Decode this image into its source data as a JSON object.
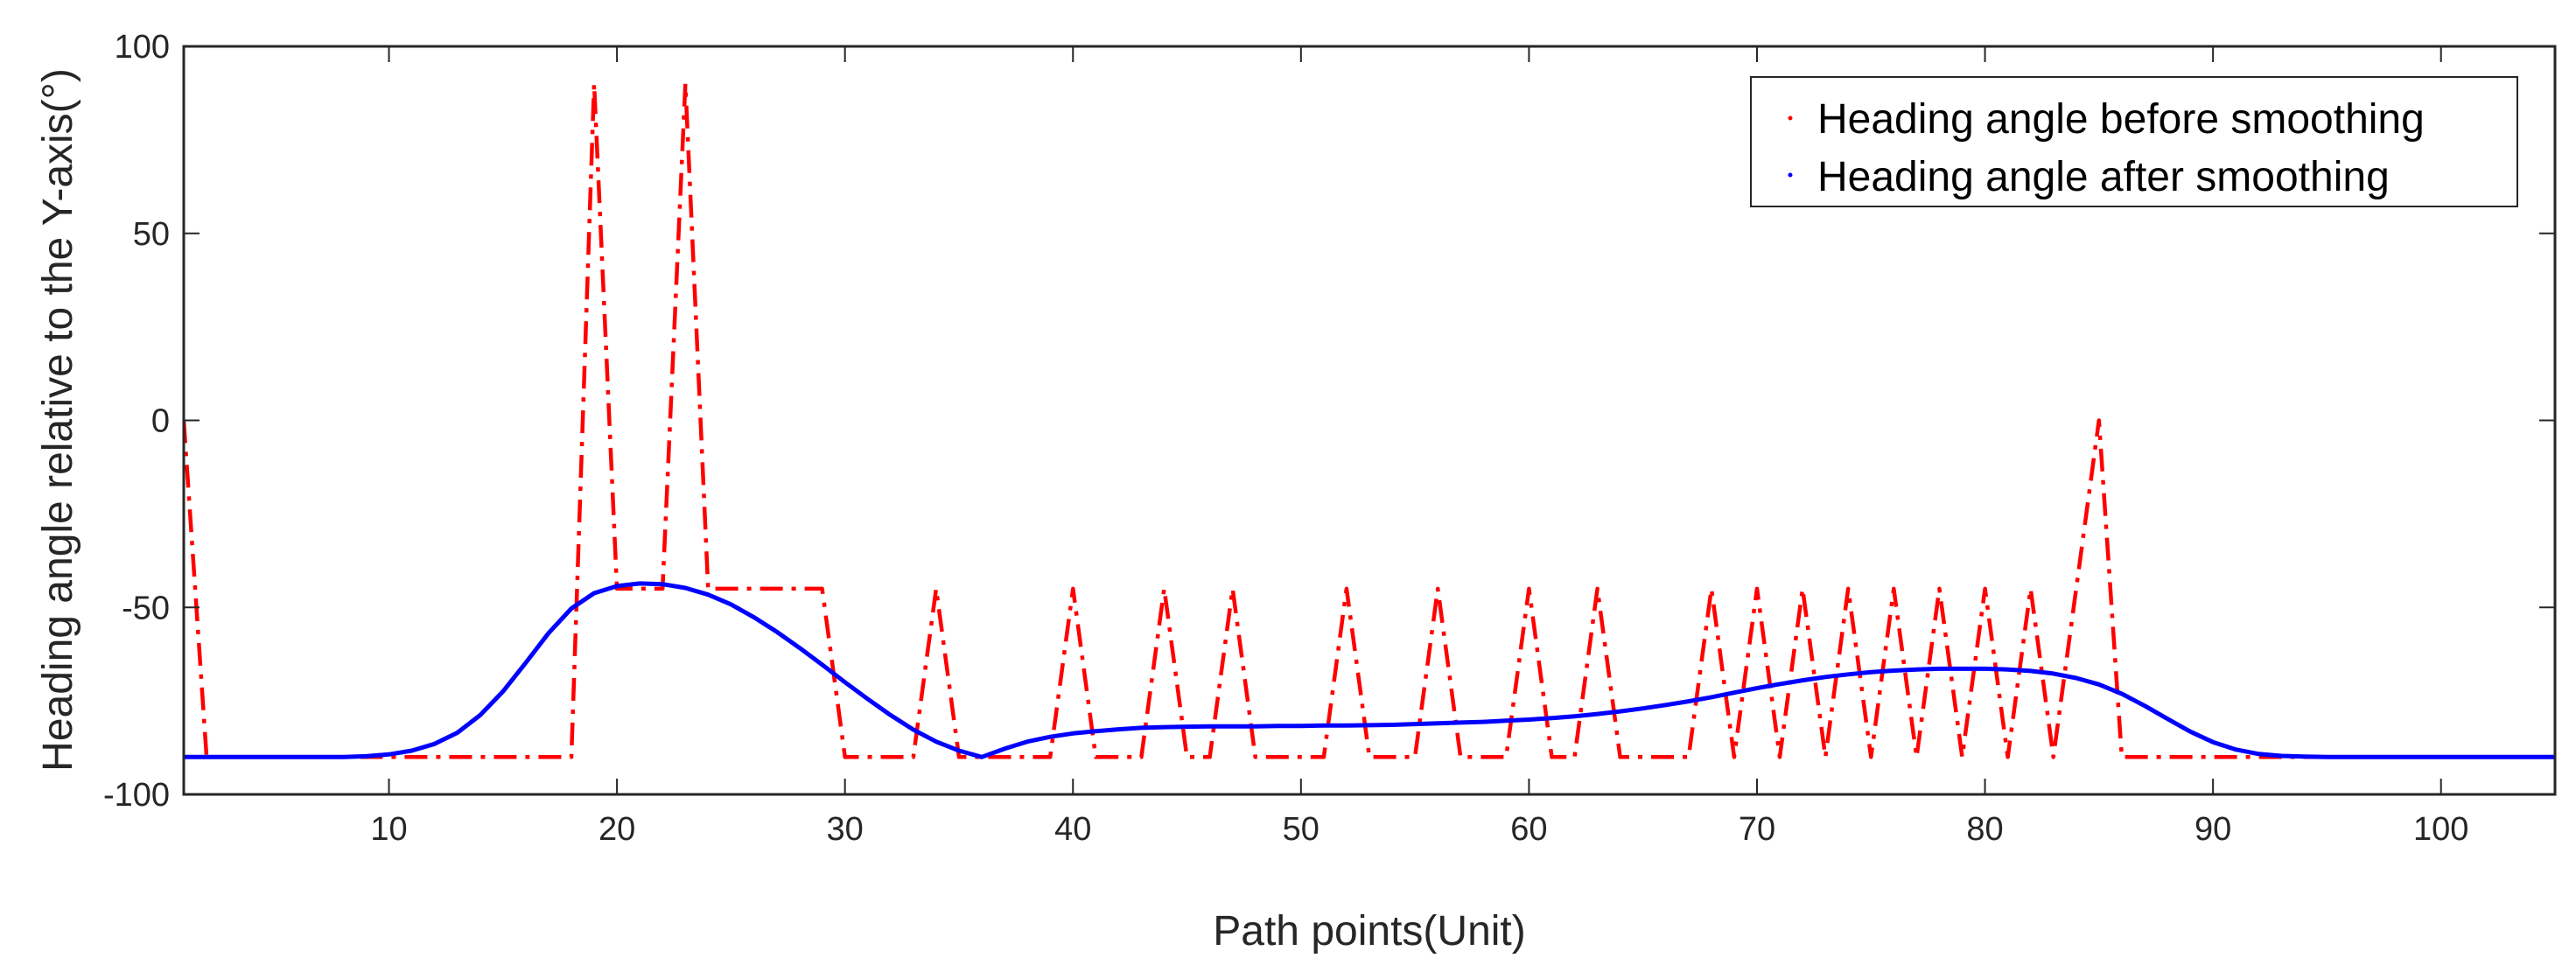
{
  "chart_data": {
    "type": "line",
    "title": "",
    "xlabel": "Path points(Unit)",
    "ylabel": "Heading angle relative to the Y-axis(°)",
    "xlim": [
      1,
      105
    ],
    "ylim": [
      -100,
      100
    ],
    "xticks": [
      10,
      20,
      30,
      40,
      50,
      60,
      70,
      80,
      90,
      100
    ],
    "yticks": [
      -100,
      -50,
      0,
      50,
      100
    ],
    "grid": false,
    "legend_position": "top-right",
    "series": [
      {
        "name": "Heading angle before smoothing",
        "color": "#ff0000",
        "style": "dashdot",
        "x": [
          1,
          2,
          3,
          4,
          5,
          6,
          7,
          8,
          9,
          10,
          11,
          12,
          13,
          14,
          15,
          16,
          17,
          18,
          19,
          20,
          21,
          22,
          23,
          24,
          25,
          26,
          27,
          28,
          29,
          30,
          31,
          32,
          33,
          34,
          35,
          36,
          37,
          38,
          39,
          40,
          41,
          42,
          43,
          44,
          45,
          46,
          47,
          48,
          49,
          50,
          51,
          52,
          53,
          54,
          55,
          56,
          57,
          58,
          59,
          60,
          61,
          62,
          63,
          64,
          65,
          66,
          67,
          68,
          69,
          70,
          71,
          72,
          73,
          74,
          75,
          76,
          77,
          78,
          79,
          80,
          81,
          82,
          83,
          84,
          85,
          86,
          87,
          88,
          89,
          90,
          91,
          92,
          93,
          94,
          95,
          96,
          97,
          98,
          99,
          100,
          101,
          102,
          103,
          104,
          105
        ],
        "y": [
          0,
          -90,
          -90,
          -90,
          -90,
          -90,
          -90,
          -90,
          -90,
          -90,
          -90,
          -90,
          -90,
          -90,
          -90,
          -90,
          -90,
          -90,
          90,
          -45,
          -45,
          -45,
          90,
          -45,
          -45,
          -45,
          -45,
          -45,
          -45,
          -90,
          -90,
          -90,
          -90,
          -45,
          -90,
          -90,
          -90,
          -90,
          -90,
          -45,
          -90,
          -90,
          -90,
          -45,
          -90,
          -90,
          -45,
          -90,
          -90,
          -90,
          -90,
          -45,
          -90,
          -90,
          -90,
          -45,
          -90,
          -90,
          -90,
          -45,
          -90,
          -90,
          -45,
          -90,
          -90,
          -90,
          -90,
          -45,
          -90,
          -45,
          -90,
          -45,
          -90,
          -45,
          -90,
          -45,
          -90,
          -45,
          -90,
          -45,
          -90,
          -45,
          -90,
          -45,
          0,
          -90,
          -90,
          -90,
          -90,
          -90,
          -90,
          -90,
          -90,
          -90,
          -90,
          -90,
          -90,
          -90,
          -90,
          -90,
          -90,
          -90,
          -90,
          -90,
          -90
        ]
      },
      {
        "name": "Heading angle after smoothing",
        "color": "#0000ff",
        "style": "solid",
        "x": [
          1,
          2,
          3,
          4,
          5,
          6,
          7,
          8,
          9,
          10,
          11,
          12,
          13,
          14,
          15,
          16,
          17,
          18,
          19,
          20,
          21,
          22,
          23,
          24,
          25,
          26,
          27,
          28,
          29,
          30,
          31,
          32,
          33,
          34,
          35,
          36,
          37,
          38,
          39,
          40,
          41,
          42,
          43,
          44,
          45,
          46,
          47,
          48,
          49,
          50,
          51,
          52,
          53,
          54,
          55,
          56,
          57,
          58,
          59,
          60,
          61,
          62,
          63,
          64,
          65,
          66,
          67,
          68,
          69,
          70,
          71,
          72,
          73,
          74,
          75,
          76,
          77,
          78,
          79,
          80,
          81,
          82,
          83,
          84,
          85,
          86,
          87,
          88,
          89,
          90,
          91,
          92,
          93,
          94,
          95,
          96,
          97,
          98,
          99,
          100,
          101,
          102,
          103,
          104,
          105
        ],
        "y": [
          -90,
          -90,
          -90,
          -90,
          -90,
          -90,
          -90,
          -90,
          -89.8,
          -89.3,
          -88.3,
          -86.5,
          -83.5,
          -78.8,
          -72.5,
          -64.8,
          -56.9,
          -50.3,
          -46.2,
          -44.3,
          -43.6,
          -43.8,
          -44.8,
          -46.6,
          -49.2,
          -52.6,
          -56.5,
          -60.8,
          -65.3,
          -70,
          -74.5,
          -78.8,
          -82.7,
          -85.9,
          -88.3,
          -90,
          -87.8,
          -85.9,
          -84.6,
          -83.7,
          -83.1,
          -82.6,
          -82.2,
          -82,
          -81.9,
          -81.8,
          -81.8,
          -81.8,
          -81.7,
          -81.7,
          -81.6,
          -81.6,
          -81.5,
          -81.4,
          -81.2,
          -81,
          -80.8,
          -80.6,
          -80.3,
          -80,
          -79.6,
          -79.1,
          -78.5,
          -77.8,
          -77,
          -76.1,
          -75.1,
          -74,
          -72.8,
          -71.6,
          -70.5,
          -69.5,
          -68.6,
          -67.9,
          -67.3,
          -66.9,
          -66.6,
          -66.4,
          -66.4,
          -66.4,
          -66.6,
          -67,
          -67.7,
          -68.9,
          -70.6,
          -73.1,
          -76.3,
          -79.8,
          -83.2,
          -86,
          -88,
          -89.2,
          -89.7,
          -89.9,
          -90,
          -90,
          -90,
          -90,
          -90,
          -90,
          -90,
          -90,
          -90,
          -90,
          -90
        ]
      }
    ]
  }
}
